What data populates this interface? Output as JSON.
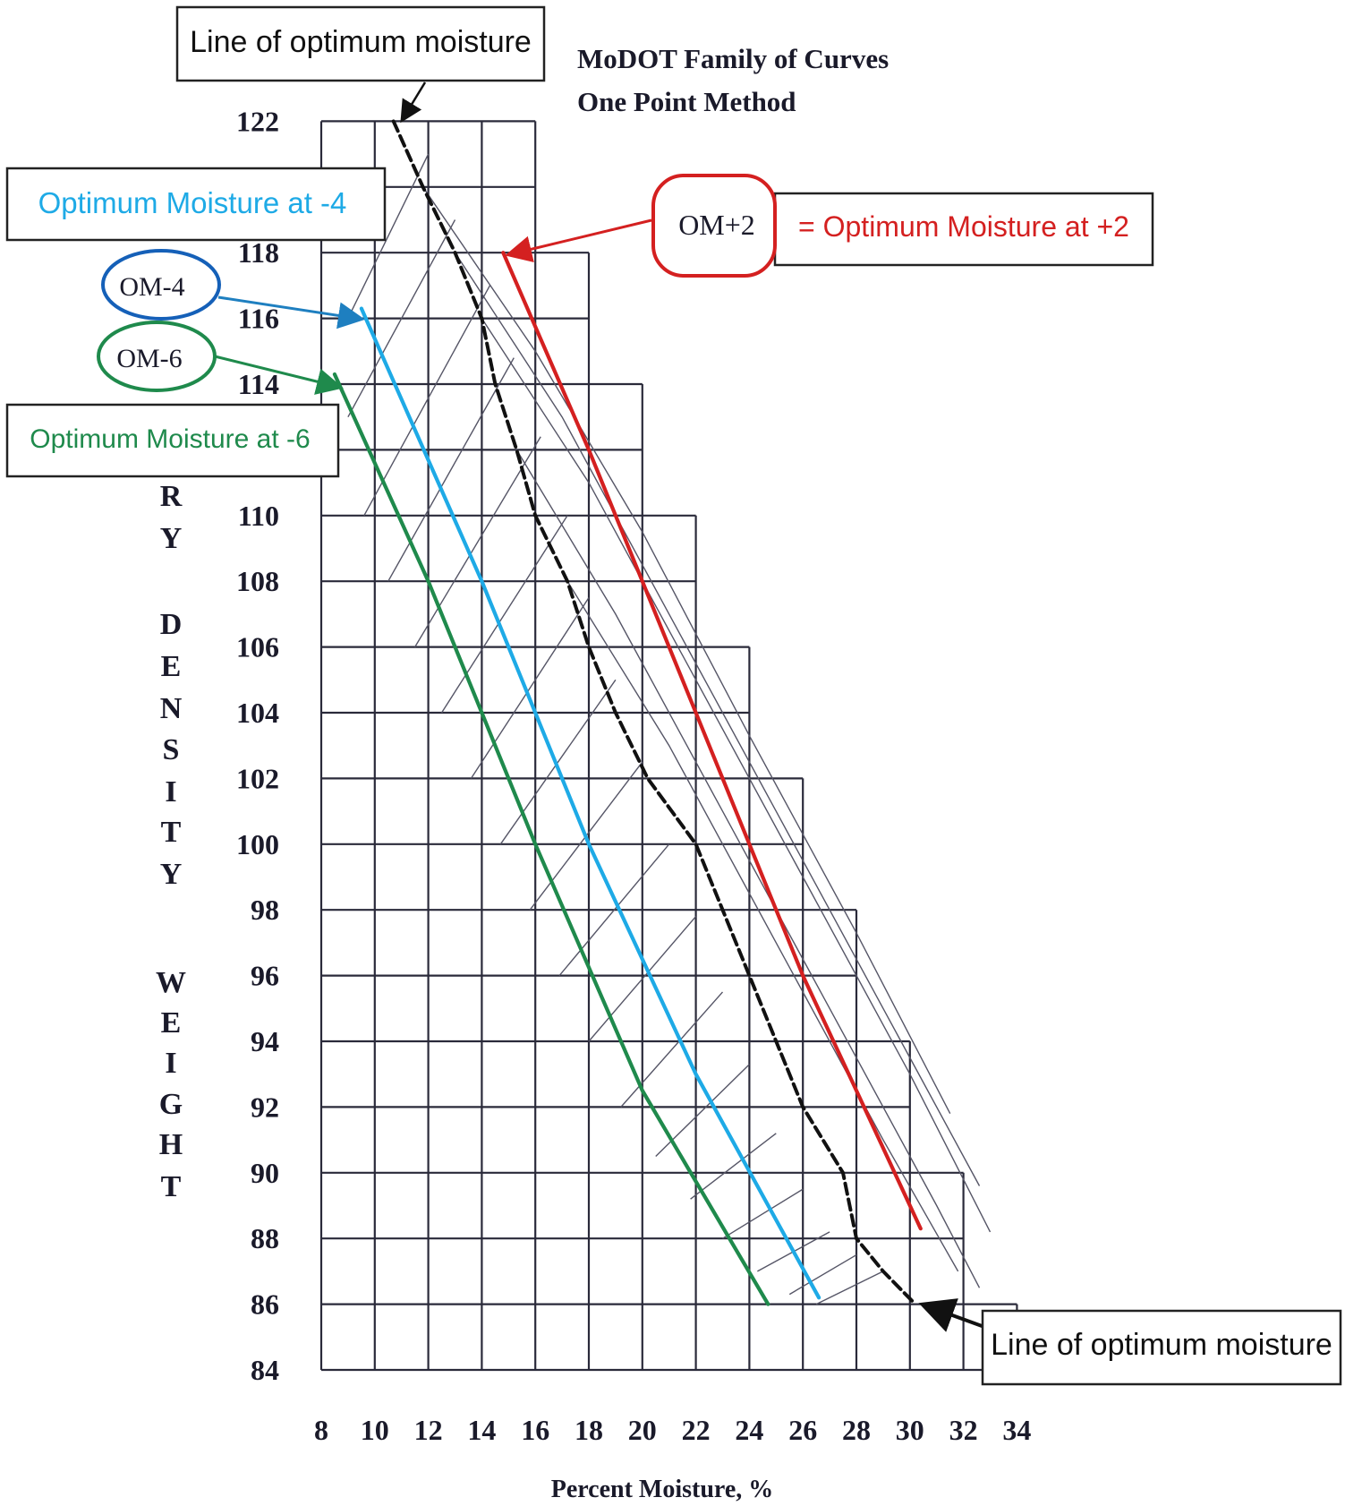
{
  "chart_data": {
    "type": "line",
    "title": "MoDOT Family of Curves",
    "subtitle": "One Point Method",
    "xlabel": "Percent Moisture, %",
    "ylabel": "DRY DENSITY WEIGHT",
    "ylabel_letters": [
      "R",
      "Y",
      "D",
      "E",
      "N",
      "S",
      "I",
      "T",
      "Y",
      "W",
      "E",
      "I",
      "G",
      "H",
      "T"
    ],
    "x_ticks": [
      8,
      10,
      12,
      14,
      16,
      18,
      20,
      22,
      24,
      26,
      28,
      30,
      32,
      34
    ],
    "y_ticks": [
      122,
      118,
      116,
      114,
      110,
      108,
      106,
      104,
      102,
      100,
      98,
      96,
      94,
      92,
      90,
      88,
      86,
      84
    ],
    "xlim": [
      8,
      34
    ],
    "ylim": [
      84,
      122
    ],
    "grid_steps": [
      {
        "ymin": 120,
        "x_right": 16
      },
      {
        "ymin": 116,
        "x_right": 18
      },
      {
        "ymin": 112,
        "x_right": 20
      },
      {
        "ymin": 108,
        "x_right": 22
      },
      {
        "ymin": 104,
        "x_right": 24
      },
      {
        "ymin": 100,
        "x_right": 26
      },
      {
        "ymin": 96,
        "x_right": 28
      },
      {
        "ymin": 92,
        "x_right": 30
      },
      {
        "ymin": 88,
        "x_right": 32
      },
      {
        "ymin": 84,
        "x_right": 34
      }
    ],
    "series": [
      {
        "name": "Line of optimum moisture",
        "color": "#111111",
        "style": "dashed",
        "points": [
          [
            10.7,
            122
          ],
          [
            11.8,
            120
          ],
          [
            13,
            118
          ],
          [
            14,
            116
          ],
          [
            14.5,
            114
          ],
          [
            15.3,
            112
          ],
          [
            16,
            110
          ],
          [
            17.2,
            108
          ],
          [
            18,
            106
          ],
          [
            19,
            104
          ],
          [
            20.2,
            102
          ],
          [
            22,
            100
          ],
          [
            23,
            98
          ],
          [
            24,
            96
          ],
          [
            25,
            94
          ],
          [
            26,
            92
          ],
          [
            27.5,
            90
          ],
          [
            28,
            88
          ],
          [
            29,
            87
          ],
          [
            30.2,
            86
          ]
        ]
      },
      {
        "name": "OM+2",
        "color": "#d42020",
        "style": "solid",
        "points": [
          [
            14.8,
            118
          ],
          [
            18,
            112
          ],
          [
            22,
            104
          ],
          [
            26,
            96
          ],
          [
            30.4,
            88.3
          ]
        ]
      },
      {
        "name": "OM-4",
        "color": "#1eaae6",
        "style": "solid",
        "points": [
          [
            9.5,
            116.3
          ],
          [
            14,
            108
          ],
          [
            18,
            100
          ],
          [
            22,
            93
          ],
          [
            26.6,
            86.2
          ]
        ]
      },
      {
        "name": "OM-6",
        "color": "#1f8a4c",
        "style": "solid",
        "points": [
          [
            8.5,
            114.3
          ],
          [
            12,
            108
          ],
          [
            16,
            100
          ],
          [
            20,
            92.5
          ],
          [
            24.7,
            86
          ]
        ]
      }
    ],
    "thin_curves": [
      [
        [
          11.8,
          120
        ],
        [
          16,
          115
        ],
        [
          20,
          109.5
        ],
        [
          24,
          103.3
        ],
        [
          28,
          97.3
        ],
        [
          31.5,
          91.8
        ]
      ],
      [
        [
          13,
          118
        ],
        [
          17,
          113
        ],
        [
          21,
          107
        ],
        [
          25,
          101
        ],
        [
          29,
          95
        ],
        [
          32.6,
          89.6
        ]
      ],
      [
        [
          14,
          116
        ],
        [
          18,
          111
        ],
        [
          22,
          105
        ],
        [
          26,
          99
        ],
        [
          30,
          93
        ],
        [
          33,
          88.2
        ]
      ],
      [
        [
          15.3,
          112
        ],
        [
          19,
          107
        ],
        [
          23,
          101
        ],
        [
          27,
          95
        ],
        [
          31,
          89
        ],
        [
          32.6,
          86.5
        ]
      ],
      [
        [
          17.2,
          108
        ],
        [
          21,
          103
        ],
        [
          25,
          97
        ],
        [
          29,
          91
        ],
        [
          31.8,
          87
        ]
      ]
    ],
    "cross_lines": [
      [
        [
          9,
          116
        ],
        [
          12,
          121
        ]
      ],
      [
        [
          9,
          113
        ],
        [
          13,
          119
        ]
      ],
      [
        [
          9.6,
          110
        ],
        [
          14.3,
          117
        ]
      ],
      [
        [
          10.5,
          108
        ],
        [
          15.2,
          114.8
        ]
      ],
      [
        [
          11.5,
          106
        ],
        [
          16.2,
          112.4
        ]
      ],
      [
        [
          12.5,
          104
        ],
        [
          17.2,
          110
        ]
      ],
      [
        [
          13.6,
          102
        ],
        [
          18,
          107.5
        ]
      ],
      [
        [
          14.7,
          100
        ],
        [
          19,
          105
        ]
      ],
      [
        [
          15.8,
          98
        ],
        [
          20,
          102.5
        ]
      ],
      [
        [
          16.9,
          96
        ],
        [
          21,
          100
        ]
      ],
      [
        [
          18,
          94
        ],
        [
          22,
          97.8
        ]
      ],
      [
        [
          19.2,
          92
        ],
        [
          23,
          95.5
        ]
      ],
      [
        [
          20.5,
          90.5
        ],
        [
          24,
          93.3
        ]
      ],
      [
        [
          21.8,
          89.2
        ],
        [
          25,
          91.2
        ]
      ],
      [
        [
          23,
          88
        ],
        [
          26,
          89.5
        ]
      ],
      [
        [
          24.3,
          87
        ],
        [
          27,
          88.2
        ]
      ],
      [
        [
          25.5,
          86.3
        ],
        [
          28,
          87.5
        ]
      ],
      [
        [
          26.5,
          86
        ],
        [
          29,
          87
        ]
      ]
    ],
    "legend_placement": "annotations"
  },
  "annotations": {
    "top_box": "Line of optimum moisture",
    "bottom_box": "Line of optimum moisture",
    "om_plus2_tag": "OM+2",
    "om_plus2_box": "= Optimum  Moisture at +2",
    "om_minus4_tag": "OM-4",
    "om_minus4_box": "Optimum Moisture at -4",
    "om_minus6_tag": "OM-6",
    "om_minus6_box": "Optimum Moisture at -6"
  },
  "colors": {
    "grid": "#2a2a3a",
    "thin": "#555566",
    "om_plus2": "#d42020",
    "om_minus4": "#1eaae6",
    "om_minus6": "#1f8a4c",
    "optimum": "#111111"
  }
}
